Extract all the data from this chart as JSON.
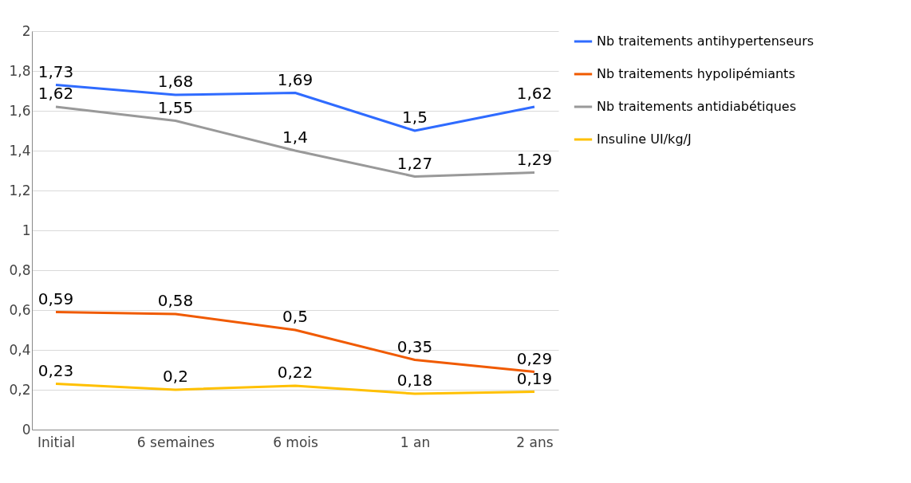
{
  "chart_data": {
    "type": "line",
    "categories": [
      "Initial",
      "6 semaines",
      "6 mois",
      "1 an",
      "2 ans"
    ],
    "series": [
      {
        "name": "Nb traitements antihypertenseurs",
        "color": "#2f6bff",
        "values": [
          1.73,
          1.68,
          1.69,
          1.5,
          1.62
        ],
        "value_labels": [
          "1,73",
          "1,68",
          "1,69",
          "1,5",
          "1,62"
        ]
      },
      {
        "name": "Nb traitements hypolipémiants",
        "color": "#f05a00",
        "values": [
          0.59,
          0.58,
          0.5,
          0.35,
          0.29
        ],
        "value_labels": [
          "0,59",
          "0,58",
          "0,5",
          "0,35",
          "0,29"
        ]
      },
      {
        "name": "Nb traitements antidiabétiques",
        "color": "#999999",
        "values": [
          1.62,
          1.55,
          1.4,
          1.27,
          1.29
        ],
        "value_labels": [
          "1,62",
          "1,55",
          "1,4",
          "1,27",
          "1,29"
        ]
      },
      {
        "name": "Insuline UI/kg/J",
        "color": "#ffc000",
        "values": [
          0.23,
          0.2,
          0.22,
          0.18,
          0.19
        ],
        "value_labels": [
          "0,23",
          "0,2",
          "0,22",
          "0,18",
          "0,19"
        ]
      }
    ],
    "ylim": [
      0,
      2
    ],
    "yticks": [
      0,
      {
        "value": 0.2,
        "label": "0,2"
      },
      {
        "value": 0.4,
        "label": "0,4"
      },
      {
        "value": 0.6,
        "label": "0,6"
      },
      {
        "value": 0.8,
        "label": "0,8"
      },
      1,
      {
        "value": 1.2,
        "label": "1,2"
      },
      {
        "value": 1.4,
        "label": "1,4"
      },
      {
        "value": 1.6,
        "label": "1,6"
      },
      {
        "value": 1.8,
        "label": "1,8"
      },
      2
    ],
    "grid": "y",
    "legend": "right",
    "line_style": "solid"
  }
}
